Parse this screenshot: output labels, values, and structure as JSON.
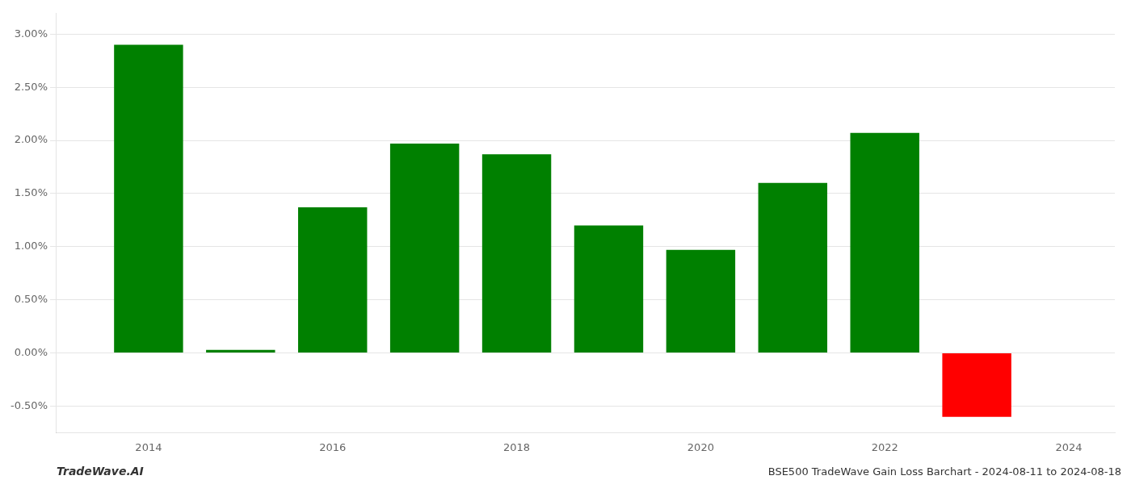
{
  "chart_data": {
    "type": "bar",
    "x": [
      2014,
      2015,
      2016,
      2017,
      2018,
      2019,
      2020,
      2021,
      2022,
      2023
    ],
    "values": [
      0.029,
      0.0003,
      0.0137,
      0.0197,
      0.0187,
      0.012,
      0.0097,
      0.016,
      0.0207,
      -0.006
    ],
    "colors": [
      "#008000",
      "#008000",
      "#008000",
      "#008000",
      "#008000",
      "#008000",
      "#008000",
      "#008000",
      "#008000",
      "#ff0000"
    ],
    "xlim": [
      2013.0,
      2024.5
    ],
    "xticks": [
      2014,
      2016,
      2018,
      2020,
      2022,
      2024
    ],
    "ylim": [
      -0.0075,
      0.032
    ],
    "yticks": [
      {
        "value": -0.005,
        "label": "-0.50%"
      },
      {
        "value": 0.0,
        "label": "0.00%"
      },
      {
        "value": 0.005,
        "label": "0.50%"
      },
      {
        "value": 0.01,
        "label": "1.00%"
      },
      {
        "value": 0.015,
        "label": "1.50%"
      },
      {
        "value": 0.02,
        "label": "2.00%"
      },
      {
        "value": 0.025,
        "label": "2.50%"
      },
      {
        "value": 0.03,
        "label": "3.00%"
      }
    ],
    "grid": "y",
    "annotations": [
      "TradeWave.AI",
      "BSE500 TradeWave Gain Loss Barchart - 2024-08-11 to 2024-08-18"
    ]
  }
}
